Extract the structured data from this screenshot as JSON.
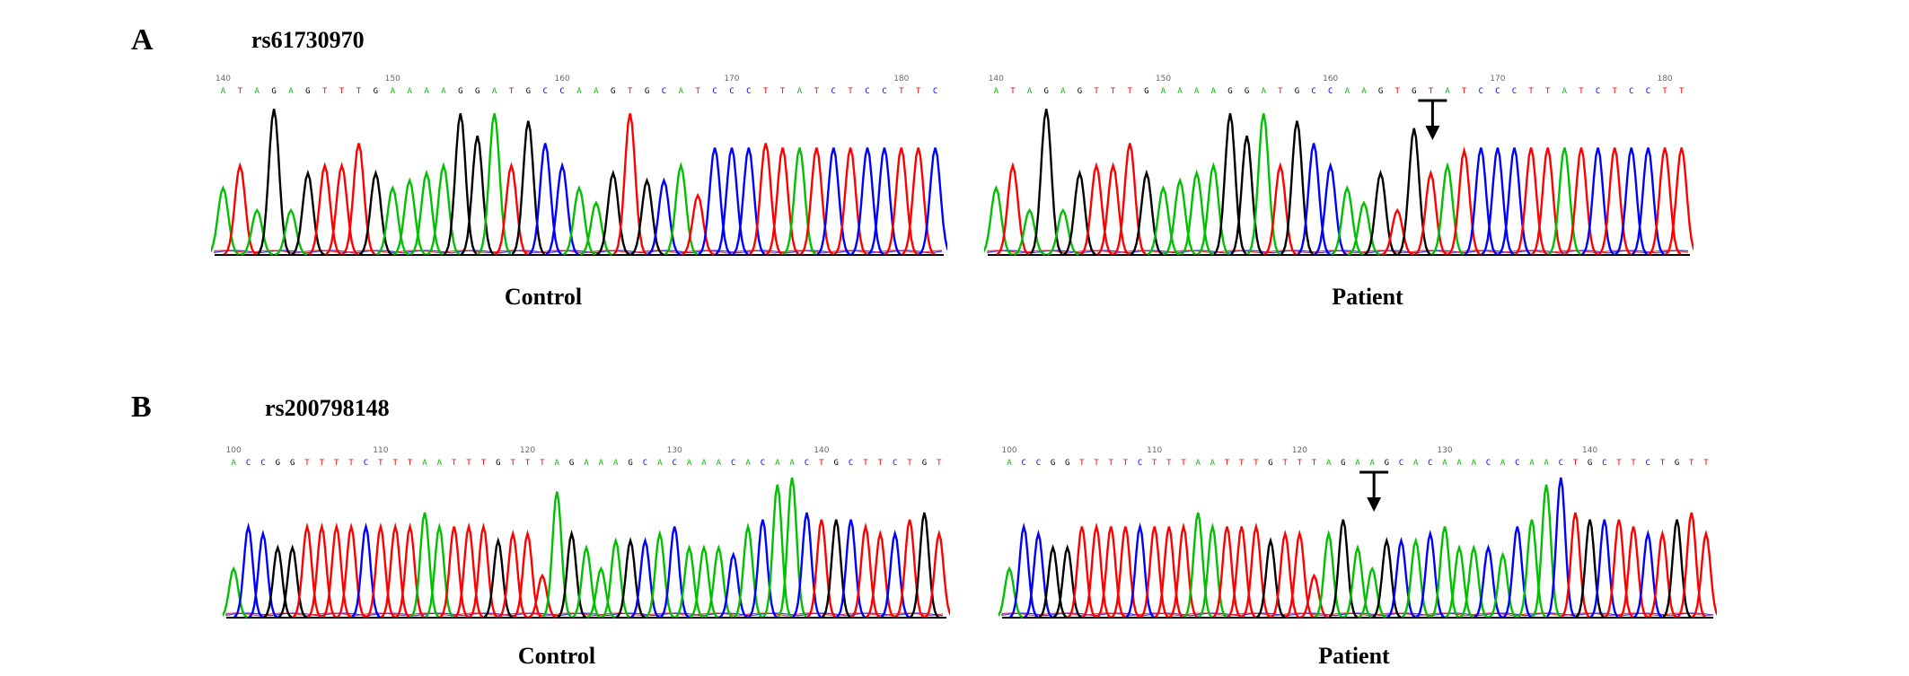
{
  "panels": [
    {
      "letter": "A",
      "snp": "rs61730970",
      "traces": [
        {
          "caption": "Control",
          "start_index": 140,
          "index_labels": [
            "140",
            "150",
            "160",
            "170",
            "180"
          ],
          "sequence": "ATAGAGTTTGAAAAGGATGCCAAGTGCATCCCTTATCTCCTTC",
          "peak_heights": [
            0.45,
            0.6,
            0.3,
            0.98,
            0.3,
            0.55,
            0.6,
            0.6,
            0.75,
            0.55,
            0.45,
            0.5,
            0.55,
            0.6,
            0.95,
            0.8,
            0.95,
            0.6,
            0.9,
            0.75,
            0.6,
            0.45,
            0.35,
            0.55,
            0.95,
            0.5,
            0.5,
            0.6,
            0.4,
            0.72,
            0.72,
            0.72,
            0.75,
            0.72,
            0.72,
            0.72,
            0.72,
            0.72,
            0.72,
            0.72,
            0.72,
            0.72,
            0.72
          ],
          "mutation_arrow": false
        },
        {
          "caption": "Patient",
          "start_index": 140,
          "index_labels": [
            "140",
            "150",
            "160",
            "170",
            "180"
          ],
          "sequence": "ATAGAGTTTGAAAAGGATGCCAAGTGTATCCCTTATCTCCTT",
          "peak_heights": [
            0.45,
            0.6,
            0.3,
            0.98,
            0.3,
            0.55,
            0.6,
            0.6,
            0.75,
            0.55,
            0.45,
            0.5,
            0.55,
            0.6,
            0.95,
            0.8,
            0.95,
            0.6,
            0.9,
            0.75,
            0.6,
            0.45,
            0.35,
            0.55,
            0.3,
            0.85,
            0.55,
            0.6,
            0.7,
            0.72,
            0.72,
            0.72,
            0.72,
            0.72,
            0.72,
            0.72,
            0.72,
            0.72,
            0.72,
            0.72,
            0.72,
            0.72
          ],
          "mutation_arrow": true,
          "mutation_position": 26
        }
      ]
    },
    {
      "letter": "B",
      "snp": "rs200798148",
      "traces": [
        {
          "caption": "Control",
          "start_index": 100,
          "index_labels": [
            "100",
            "110",
            "120",
            "130",
            "140"
          ],
          "sequence": "ACCGGTTTTCTTTAATTTGTTTAGAAAGCACAAACACAACTGCTTCTGT",
          "peak_heights": [
            0.35,
            0.65,
            0.6,
            0.5,
            0.5,
            0.65,
            0.65,
            0.65,
            0.65,
            0.65,
            0.65,
            0.65,
            0.65,
            0.75,
            0.65,
            0.65,
            0.65,
            0.65,
            0.55,
            0.6,
            0.6,
            0.3,
            0.9,
            0.6,
            0.5,
            0.35,
            0.55,
            0.55,
            0.55,
            0.6,
            0.65,
            0.5,
            0.5,
            0.5,
            0.45,
            0.65,
            0.7,
            0.95,
            1.0,
            0.75,
            0.7,
            0.7,
            0.7,
            0.65,
            0.6,
            0.6,
            0.7,
            0.75,
            0.6
          ],
          "mutation_arrow": false
        },
        {
          "caption": "Patient",
          "start_index": 100,
          "index_labels": [
            "100",
            "110",
            "120",
            "130",
            "140"
          ],
          "sequence": "ACCGGTTTTCTTTAATTTGTTTAGAAGCACAAACACAACTGCTTCTGTT",
          "peak_heights": [
            0.35,
            0.65,
            0.6,
            0.5,
            0.5,
            0.65,
            0.65,
            0.65,
            0.65,
            0.65,
            0.65,
            0.65,
            0.65,
            0.75,
            0.65,
            0.65,
            0.65,
            0.65,
            0.55,
            0.6,
            0.6,
            0.3,
            0.6,
            0.7,
            0.5,
            0.35,
            0.55,
            0.55,
            0.55,
            0.6,
            0.65,
            0.5,
            0.5,
            0.5,
            0.45,
            0.65,
            0.7,
            0.95,
            1.0,
            0.75,
            0.7,
            0.7,
            0.7,
            0.65,
            0.6,
            0.6,
            0.7,
            0.75,
            0.6
          ],
          "mutation_arrow": true,
          "mutation_position": 25
        }
      ]
    }
  ],
  "base_colors": {
    "A": "#00c000",
    "C": "#0000ff",
    "G": "#000000",
    "T": "#ff0000"
  }
}
